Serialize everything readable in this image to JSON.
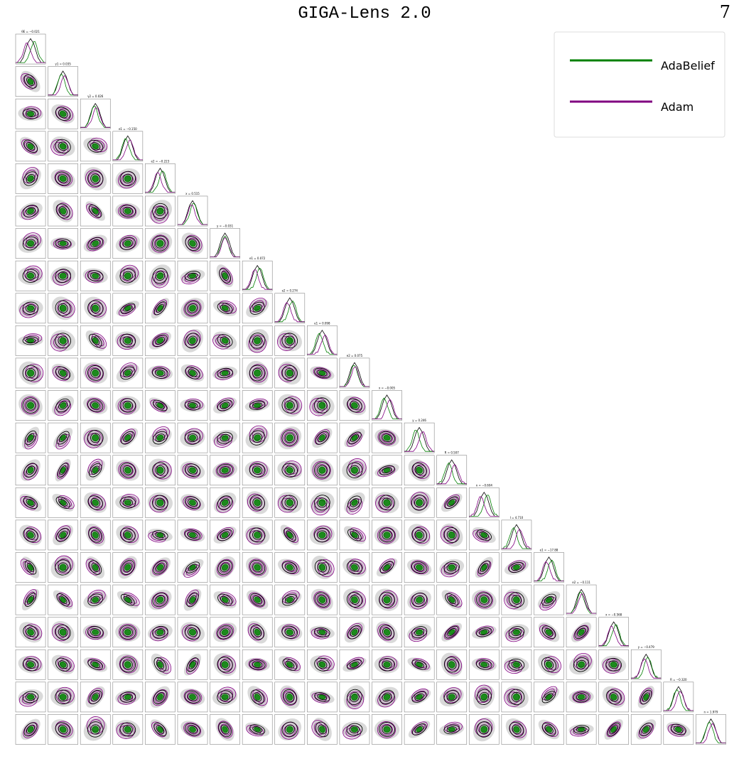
{
  "header": {
    "title": "GIGA-Lens 2.0",
    "page": "7"
  },
  "figure": {
    "legend": [
      {
        "label": "AdaBelief",
        "color": "#008000"
      },
      {
        "label": "Adam",
        "color": "#800080"
      }
    ],
    "panel_titles": [
      "θE = −0.021",
      "γ1 = 0.035",
      "γ2 = 0.026",
      "e1 = −0.150",
      "e2 = −0.223",
      "x = 0.515",
      "y = −0.031",
      "e1 = 0.072",
      "e2 = 0.274",
      "e1 = 0.098",
      "e2 = 0.075",
      "x = −0.005",
      "y = 0.246",
      "R = 0.507",
      "n = −0.604",
      "I = 4.710",
      "e1 = −17.88",
      "e2 = −0.111",
      "x = −0.568",
      "y = −0.479",
      "R = −0.320",
      "n = 1.979"
    ]
  }
}
